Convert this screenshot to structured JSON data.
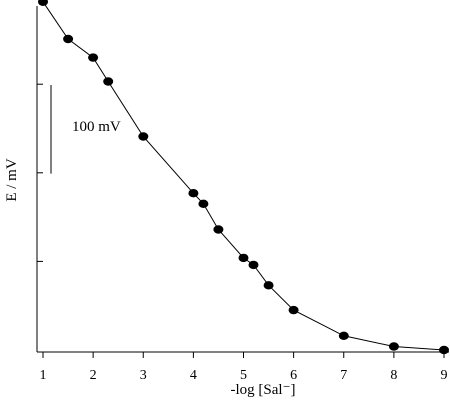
{
  "chart_data": {
    "type": "line",
    "title": "",
    "xlabel": "-log [Sal⁻]",
    "ylabel": "E / mV",
    "x_ticks": [
      "1",
      "2",
      "3",
      "4",
      "5",
      "6",
      "7",
      "8",
      "9"
    ],
    "xlim": [
      1,
      9
    ],
    "ylim": [
      0,
      385
    ],
    "y_tick_values": [
      100,
      200,
      300
    ],
    "y_tick_labels_shown": false,
    "scale_bar": {
      "label": "100 mV",
      "value_mV": 100
    },
    "grid": false,
    "legend": "none",
    "marker": "filled-circle",
    "line_color": "#000000",
    "marker_color": "#000000",
    "series": [
      {
        "x": [
          1.0,
          1.5,
          2.0,
          2.3,
          3.0,
          4.0,
          4.2,
          4.5,
          5.0,
          5.2,
          5.5,
          6.0,
          7.0,
          8.0,
          9.0
        ],
        "y": [
          393,
          351,
          330,
          303,
          241,
          177,
          165,
          136,
          104,
          96,
          73,
          45,
          16,
          4,
          0
        ]
      }
    ]
  }
}
